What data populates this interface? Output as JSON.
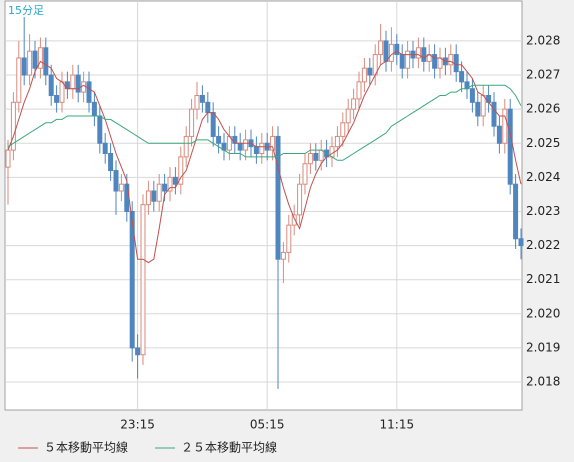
{
  "chart_data": {
    "type": "candlestick",
    "title": "15分足",
    "categories": [
      null,
      null,
      null,
      null,
      null,
      null,
      null,
      null,
      null,
      null,
      null,
      null,
      null,
      null,
      null,
      null,
      null,
      null,
      null,
      null,
      null,
      null,
      null,
      null,
      "23:15",
      null,
      null,
      null,
      null,
      null,
      null,
      null,
      null,
      null,
      null,
      null,
      null,
      null,
      null,
      null,
      null,
      null,
      null,
      null,
      null,
      null,
      null,
      null,
      "05:15",
      null,
      null,
      null,
      null,
      null,
      null,
      null,
      null,
      null,
      null,
      null,
      null,
      null,
      null,
      null,
      null,
      null,
      null,
      null,
      null,
      null,
      null,
      null,
      "11:15",
      null,
      null,
      null,
      null,
      null,
      null,
      null,
      null,
      null,
      null,
      null,
      null,
      null,
      null,
      null,
      null,
      null,
      null,
      null,
      null,
      null,
      null,
      null
    ],
    "ohlc": [
      [
        2.0243,
        2.0251,
        2.0232,
        2.0248
      ],
      [
        2.0248,
        2.0265,
        2.0245,
        2.0262
      ],
      [
        2.0262,
        2.028,
        2.0259,
        2.0275
      ],
      [
        2.0275,
        2.0287,
        2.0267,
        2.027
      ],
      [
        2.027,
        2.0282,
        2.0267,
        2.0277
      ],
      [
        2.0277,
        2.028,
        2.0269,
        2.0272
      ],
      [
        2.0272,
        2.0281,
        2.0269,
        2.0278
      ],
      [
        2.0278,
        2.0281,
        2.0267,
        2.027
      ],
      [
        2.027,
        2.0273,
        2.0261,
        2.0264
      ],
      [
        2.0264,
        2.0267,
        2.0259,
        2.0262
      ],
      [
        2.0262,
        2.0271,
        2.0259,
        2.0268
      ],
      [
        2.0268,
        2.0271,
        2.0263,
        2.0266
      ],
      [
        2.0266,
        2.0273,
        2.0263,
        2.027
      ],
      [
        2.027,
        2.0273,
        2.0262,
        2.0265
      ],
      [
        2.0265,
        2.0271,
        2.0262,
        2.0268
      ],
      [
        2.0268,
        2.0271,
        2.0259,
        2.0262
      ],
      [
        2.0262,
        2.0265,
        2.0255,
        2.0258
      ],
      [
        2.0258,
        2.0261,
        2.0247,
        2.025
      ],
      [
        2.025,
        2.0253,
        2.0244,
        2.0247
      ],
      [
        2.0247,
        2.025,
        2.0239,
        2.0242
      ],
      [
        2.0242,
        2.0245,
        2.0229,
        2.0236
      ],
      [
        2.0236,
        2.0241,
        2.0233,
        2.0238
      ],
      [
        2.0238,
        2.0241,
        2.0227,
        2.023
      ],
      [
        2.023,
        2.0233,
        2.0186,
        2.019
      ],
      [
        2.019,
        2.0194,
        2.0181,
        2.0188
      ],
      [
        2.0188,
        2.0235,
        2.0185,
        2.0232
      ],
      [
        2.0232,
        2.0239,
        2.0229,
        2.0236
      ],
      [
        2.0236,
        2.0239,
        2.023,
        2.0233
      ],
      [
        2.0233,
        2.0241,
        2.023,
        2.0238
      ],
      [
        2.0238,
        2.0241,
        2.0233,
        2.0236
      ],
      [
        2.0236,
        2.0243,
        2.0233,
        2.024
      ],
      [
        2.024,
        2.0243,
        2.0235,
        2.0238
      ],
      [
        2.0238,
        2.0249,
        2.0235,
        2.0246
      ],
      [
        2.0246,
        2.0255,
        2.0243,
        2.0252
      ],
      [
        2.0252,
        2.0263,
        2.0249,
        2.026
      ],
      [
        2.026,
        2.0268,
        2.0257,
        2.0264
      ],
      [
        2.0264,
        2.0267,
        2.0259,
        2.0262
      ],
      [
        2.0262,
        2.0265,
        2.0256,
        2.0259
      ],
      [
        2.0259,
        2.0262,
        2.0249,
        2.0252
      ],
      [
        2.0252,
        2.0255,
        2.0247,
        2.025
      ],
      [
        2.025,
        2.0253,
        2.0245,
        2.0248
      ],
      [
        2.0248,
        2.0255,
        2.0245,
        2.0252
      ],
      [
        2.0252,
        2.0255,
        2.0247,
        2.025
      ],
      [
        2.025,
        2.0253,
        2.0245,
        2.0248
      ],
      [
        2.0248,
        2.0254,
        2.0245,
        2.0251
      ],
      [
        2.0251,
        2.0254,
        2.0246,
        2.0249
      ],
      [
        2.0249,
        2.0252,
        2.0244,
        2.0247
      ],
      [
        2.0247,
        2.0253,
        2.0244,
        2.025
      ],
      [
        2.025,
        2.0253,
        2.0245,
        2.0248
      ],
      [
        2.0248,
        2.0255,
        2.0245,
        2.0252
      ],
      [
        2.0252,
        2.0255,
        2.0178,
        2.0216
      ],
      [
        2.0216,
        2.0221,
        2.0209,
        2.0218
      ],
      [
        2.0218,
        2.0229,
        2.0215,
        2.0226
      ],
      [
        2.0226,
        2.0232,
        2.0223,
        2.0229
      ],
      [
        2.0229,
        2.0241,
        2.0226,
        2.0238
      ],
      [
        2.0238,
        2.0247,
        2.0235,
        2.0244
      ],
      [
        2.0244,
        2.025,
        2.0241,
        2.0247
      ],
      [
        2.0247,
        2.025,
        2.0242,
        2.0245
      ],
      [
        2.0245,
        2.0251,
        2.0242,
        2.0248
      ],
      [
        2.0248,
        2.0251,
        2.0243,
        2.0246
      ],
      [
        2.0246,
        2.0252,
        2.0243,
        2.0249
      ],
      [
        2.0249,
        2.0255,
        2.0246,
        2.0252
      ],
      [
        2.0252,
        2.0259,
        2.0249,
        2.0256
      ],
      [
        2.0256,
        2.0263,
        2.0253,
        2.026
      ],
      [
        2.026,
        2.0266,
        2.0257,
        2.0263
      ],
      [
        2.0263,
        2.0271,
        2.026,
        2.0268
      ],
      [
        2.0268,
        2.0275,
        2.0265,
        2.0272
      ],
      [
        2.0272,
        2.0275,
        2.0267,
        2.027
      ],
      [
        2.027,
        2.0279,
        2.0267,
        2.0276
      ],
      [
        2.0276,
        2.0285,
        2.0273,
        2.028
      ],
      [
        2.028,
        2.0283,
        2.0271,
        2.0274
      ],
      [
        2.0274,
        2.0284,
        2.0271,
        2.0279
      ],
      [
        2.0279,
        2.0282,
        2.0273,
        2.0276
      ],
      [
        2.0276,
        2.0279,
        2.0269,
        2.0272
      ],
      [
        2.0272,
        2.028,
        2.0269,
        2.0277
      ],
      [
        2.0277,
        2.028,
        2.0272,
        2.0275
      ],
      [
        2.0275,
        2.0281,
        2.0272,
        2.0278
      ],
      [
        2.0278,
        2.0281,
        2.0271,
        2.0274
      ],
      [
        2.0274,
        2.0279,
        2.0271,
        2.0276
      ],
      [
        2.0276,
        2.0279,
        2.0269,
        2.0272
      ],
      [
        2.0272,
        2.0278,
        2.0269,
        2.0275
      ],
      [
        2.0275,
        2.0278,
        2.027,
        2.0273
      ],
      [
        2.0273,
        2.0279,
        2.027,
        2.0276
      ],
      [
        2.0276,
        2.0279,
        2.0268,
        2.0271
      ],
      [
        2.0271,
        2.0274,
        2.0265,
        2.0268
      ],
      [
        2.0268,
        2.0271,
        2.0263,
        2.0266
      ],
      [
        2.0266,
        2.0269,
        2.0259,
        2.0262
      ],
      [
        2.0262,
        2.0265,
        2.0255,
        2.0258
      ],
      [
        2.0258,
        2.0267,
        2.0255,
        2.0264
      ],
      [
        2.0264,
        2.0267,
        2.0259,
        2.0262
      ],
      [
        2.0262,
        2.0265,
        2.0252,
        2.0255
      ],
      [
        2.0255,
        2.0258,
        2.0247,
        2.025
      ],
      [
        2.025,
        2.0263,
        2.0247,
        2.026
      ],
      [
        2.026,
        2.0263,
        2.0235,
        2.0238
      ],
      [
        2.0238,
        2.0241,
        2.0219,
        2.0222
      ],
      [
        2.0222,
        2.0225,
        2.0216,
        2.022
      ]
    ],
    "up_color": "#d98a7e",
    "down_color": "#4f86c0",
    "series": [
      {
        "name": "５本移動平均線",
        "color": "#c0504d",
        "values": [
          2.0248,
          2.0252,
          2.0257,
          2.0262,
          2.0266,
          2.0271,
          2.0274,
          2.0273,
          2.0272,
          2.0269,
          2.0268,
          2.0266,
          2.0266,
          2.0266,
          2.0267,
          2.0266,
          2.0265,
          2.0261,
          2.0257,
          2.0252,
          2.0247,
          2.0243,
          2.0239,
          2.0227,
          2.0216,
          2.0216,
          2.0215,
          2.0216,
          2.0225,
          2.0235,
          2.0237,
          2.0237,
          2.024,
          2.0242,
          2.0247,
          2.0252,
          2.0257,
          2.0259,
          2.0259,
          2.0257,
          2.0254,
          2.0252,
          2.025,
          2.025,
          2.025,
          2.025,
          2.0249,
          2.0249,
          2.0249,
          2.0249,
          2.0243,
          2.0237,
          2.0232,
          2.0228,
          2.0225,
          2.0231,
          2.0237,
          2.0241,
          2.0244,
          2.0246,
          2.0247,
          2.0248,
          2.025,
          2.0253,
          2.0256,
          2.026,
          2.0264,
          2.0267,
          2.027,
          2.0273,
          2.0274,
          2.0276,
          2.0277,
          2.0276,
          2.0276,
          2.0276,
          2.0276,
          2.0275,
          2.0276,
          2.0275,
          2.0275,
          2.0274,
          2.0274,
          2.0273,
          2.0273,
          2.0271,
          2.0269,
          2.0265,
          2.0264,
          2.0262,
          2.026,
          2.0258,
          2.0258,
          2.0253,
          2.0245,
          2.0238
        ]
      },
      {
        "name": "２５本移動平均線",
        "color": "#3aa87a",
        "values": [
          2.0249,
          2.025,
          2.0251,
          2.0252,
          2.0253,
          2.0254,
          2.0255,
          2.0256,
          2.0256,
          2.0257,
          2.0257,
          2.0258,
          2.0258,
          2.0258,
          2.0258,
          2.0258,
          2.0258,
          2.0258,
          2.0257,
          2.0257,
          2.0256,
          2.0255,
          2.0254,
          2.0253,
          2.0252,
          2.0251,
          2.025,
          2.025,
          2.025,
          2.025,
          2.025,
          2.025,
          2.025,
          2.025,
          2.025,
          2.0251,
          2.0251,
          2.0251,
          2.025,
          2.0249,
          2.0248,
          2.0247,
          2.0247,
          2.0247,
          2.0246,
          2.0246,
          2.0246,
          2.0246,
          2.0246,
          2.0246,
          2.0246,
          2.0247,
          2.0247,
          2.0247,
          2.0247,
          2.0247,
          2.0248,
          2.0248,
          2.0248,
          2.0247,
          2.0246,
          2.0245,
          2.0245,
          2.0246,
          2.0247,
          2.0248,
          2.0249,
          2.025,
          2.0251,
          2.0252,
          2.0253,
          2.0255,
          2.0256,
          2.0257,
          2.0258,
          2.0259,
          2.026,
          2.0261,
          2.0262,
          2.0263,
          2.0264,
          2.0264,
          2.0265,
          2.0265,
          2.0266,
          2.0266,
          2.0267,
          2.0267,
          2.0267,
          2.0267,
          2.0267,
          2.0267,
          2.0267,
          2.0266,
          2.0264,
          2.0261
        ]
      }
    ],
    "ylim": [
      2.01718,
      2.0292
    ],
    "yticks": [
      2.018,
      2.019,
      {
        "value": 2.02,
        "label": "2.020"
      },
      2.021,
      2.022,
      2.023,
      2.024,
      2.025,
      2.026,
      2.027,
      2.028
    ],
    "grid": true
  }
}
